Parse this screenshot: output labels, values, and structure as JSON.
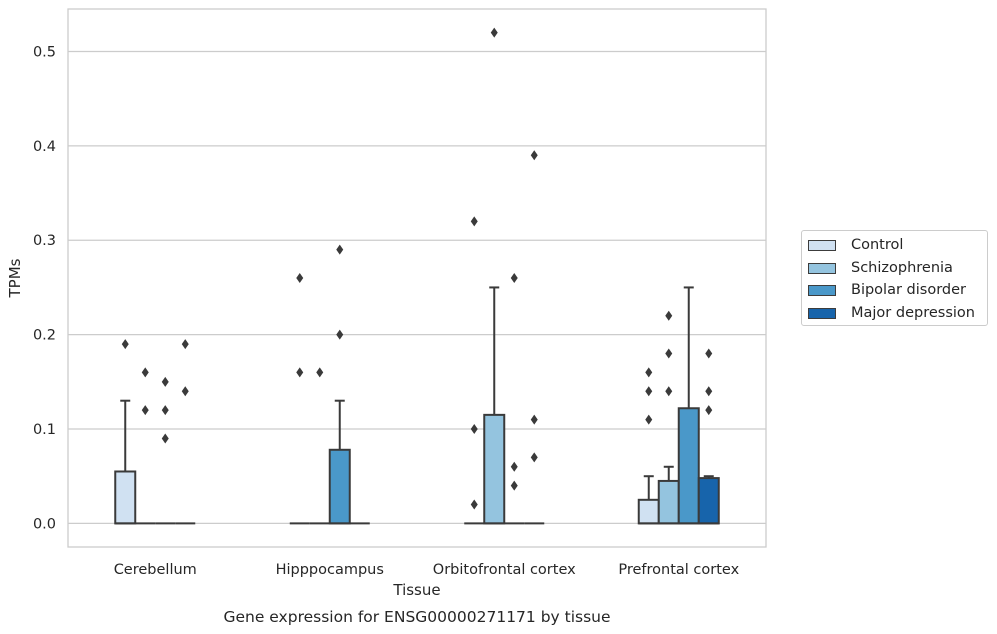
{
  "chart_data": {
    "type": "box",
    "xlabel": "Tissue",
    "ylabel": "TPMs",
    "caption": "Gene expression for ENSG00000271171 by tissue",
    "ylim": [
      -0.025,
      0.545
    ],
    "yticks": [
      0.0,
      0.1,
      0.2,
      0.3,
      0.4,
      0.5
    ],
    "ytick_labels": [
      "0.0",
      "0.1",
      "0.2",
      "0.3",
      "0.4",
      "0.5"
    ],
    "grid": true,
    "legend_position": "right",
    "categories": [
      "Cerebellum",
      "Hipppocampus",
      "Orbitofrontal cortex",
      "Prefrontal cortex"
    ],
    "series": [
      {
        "name": "Control",
        "color": "#d0e1f2",
        "boxes": [
          {
            "q1": 0.0,
            "median": 0.0,
            "q3": 0.055,
            "whisker_low": 0.0,
            "whisker_high": 0.13,
            "outliers": [
              0.19
            ]
          },
          {
            "q1": 0.0,
            "median": 0.0,
            "q3": 0.0,
            "whisker_low": 0.0,
            "whisker_high": 0.0,
            "outliers": [
              0.16,
              0.26
            ]
          },
          {
            "q1": 0.0,
            "median": 0.0,
            "q3": 0.0,
            "whisker_low": 0.0,
            "whisker_high": 0.0,
            "outliers": [
              0.02,
              0.1,
              0.32
            ]
          },
          {
            "q1": 0.0,
            "median": 0.0,
            "q3": 0.025,
            "whisker_low": 0.0,
            "whisker_high": 0.05,
            "outliers": [
              0.11,
              0.14,
              0.16
            ]
          }
        ]
      },
      {
        "name": "Schizophrenia",
        "color": "#94c4df",
        "boxes": [
          {
            "q1": 0.0,
            "median": 0.0,
            "q3": 0.0,
            "whisker_low": 0.0,
            "whisker_high": 0.0,
            "outliers": [
              0.12,
              0.16
            ]
          },
          {
            "q1": 0.0,
            "median": 0.0,
            "q3": 0.0,
            "whisker_low": 0.0,
            "whisker_high": 0.0,
            "outliers": [
              0.16
            ]
          },
          {
            "q1": 0.0,
            "median": 0.0,
            "q3": 0.115,
            "whisker_low": 0.0,
            "whisker_high": 0.25,
            "outliers": [
              0.52
            ]
          },
          {
            "q1": 0.0,
            "median": 0.0,
            "q3": 0.045,
            "whisker_low": 0.0,
            "whisker_high": 0.06,
            "outliers": [
              0.14,
              0.18,
              0.22
            ]
          }
        ]
      },
      {
        "name": "Bipolar disorder",
        "color": "#4a98c9",
        "boxes": [
          {
            "q1": 0.0,
            "median": 0.0,
            "q3": 0.0,
            "whisker_low": 0.0,
            "whisker_high": 0.0,
            "outliers": [
              0.09,
              0.12,
              0.15
            ]
          },
          {
            "q1": 0.0,
            "median": 0.0,
            "q3": 0.078,
            "whisker_low": 0.0,
            "whisker_high": 0.13,
            "outliers": [
              0.2,
              0.29
            ]
          },
          {
            "q1": 0.0,
            "median": 0.0,
            "q3": 0.0,
            "whisker_low": 0.0,
            "whisker_high": 0.0,
            "outliers": [
              0.04,
              0.06,
              0.26
            ]
          },
          {
            "q1": 0.0,
            "median": 0.0,
            "q3": 0.122,
            "whisker_low": 0.0,
            "whisker_high": 0.25,
            "outliers": []
          }
        ]
      },
      {
        "name": "Major depression",
        "color": "#1764ab",
        "boxes": [
          {
            "q1": 0.0,
            "median": 0.0,
            "q3": 0.0,
            "whisker_low": 0.0,
            "whisker_high": 0.0,
            "outliers": [
              0.14,
              0.19
            ]
          },
          {
            "q1": 0.0,
            "median": 0.0,
            "q3": 0.0,
            "whisker_low": 0.0,
            "whisker_high": 0.0,
            "outliers": []
          },
          {
            "q1": 0.0,
            "median": 0.0,
            "q3": 0.0,
            "whisker_low": 0.0,
            "whisker_high": 0.0,
            "outliers": [
              0.07,
              0.11,
              0.39
            ]
          },
          {
            "q1": 0.0,
            "median": 0.0,
            "q3": 0.048,
            "whisker_low": 0.0,
            "whisker_high": 0.05,
            "outliers": [
              0.12,
              0.14,
              0.18
            ]
          }
        ]
      }
    ]
  },
  "legend": {
    "items": [
      {
        "label": "Control",
        "color": "#d0e1f2"
      },
      {
        "label": "Schizophrenia",
        "color": "#94c4df"
      },
      {
        "label": "Bipolar disorder",
        "color": "#4a98c9"
      },
      {
        "label": "Major depression",
        "color": "#1764ab"
      }
    ]
  }
}
